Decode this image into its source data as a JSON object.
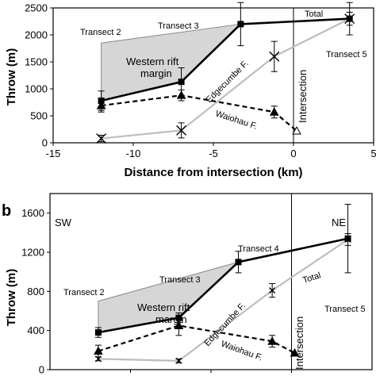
{
  "chart_data": [
    {
      "type": "line",
      "ylabel": "Throw (m)",
      "xlabel": "Distance from intersection (km)",
      "xlim": [
        -15,
        5
      ],
      "ylim": [
        0,
        2500
      ],
      "xticks": [
        -15,
        -10,
        -5,
        0,
        5
      ],
      "yticks": [
        0,
        500,
        1000,
        1500,
        2000,
        2500
      ],
      "series": [
        {
          "name": "Total",
          "style": "solid-black-square",
          "x": [
            -12,
            -7,
            -3.3,
            3.5
          ],
          "y": [
            780,
            1130,
            2200,
            2300
          ],
          "err": [
            180,
            260,
            400,
            120
          ]
        },
        {
          "name": "Waiohau F.",
          "style": "dashed-black-triangle",
          "x": [
            -12,
            -7,
            -1.2,
            0.2
          ],
          "y": [
            690,
            880,
            570,
            220
          ],
          "err": [
            120,
            100,
            110,
            0
          ]
        },
        {
          "name": "Edgecumbe F.",
          "style": "gray-x",
          "x": [
            -12,
            -7,
            -1.2,
            3.5
          ],
          "y": [
            80,
            230,
            1600,
            2300
          ],
          "err": [
            60,
            140,
            280,
            300
          ]
        }
      ],
      "shaded_region": {
        "name": "Western rift margin",
        "x": [
          -12,
          -3.3
        ],
        "y_top": [
          1850,
          2200
        ]
      },
      "vline": {
        "x": 0,
        "label": "Intersection"
      },
      "annotations": [
        "Transect 2",
        "Transect 3",
        "Western rift",
        "margin",
        "Edgecumbe F.",
        "Waiohau F.",
        "Total",
        "Transect 5"
      ]
    },
    {
      "type": "line",
      "panel_label": "b",
      "ylabel": "Throw (m)",
      "ylim": [
        0,
        1800
      ],
      "yticks": [
        0,
        400,
        800,
        1200,
        1600
      ],
      "xlim": [
        -15,
        5
      ],
      "series": [
        {
          "name": "Total",
          "style": "solid-black-square",
          "x": [
            -12,
            -7,
            -3.3,
            3.5
          ],
          "y": [
            380,
            530,
            1100,
            1340
          ],
          "err": [
            50,
            50,
            110,
            350
          ]
        },
        {
          "name": "Waiohau F.",
          "style": "dashed-black-triangle",
          "x": [
            -12,
            -7,
            -1.2,
            0.2
          ],
          "y": [
            190,
            450,
            290,
            170
          ],
          "err": [
            60,
            100,
            60,
            0
          ]
        },
        {
          "name": "Edgecumbe F.",
          "style": "gray-x",
          "x": [
            -12,
            -7,
            -1.2,
            3.5
          ],
          "y": [
            110,
            90,
            810,
            1330
          ],
          "err": [
            20,
            20,
            70,
            60
          ]
        }
      ],
      "shaded_region": {
        "name": "Western rift margin",
        "x": [
          -12,
          -3.3
        ],
        "y_top": [
          700,
          1100
        ]
      },
      "vline": {
        "x": 0,
        "label": "Intersection"
      },
      "annotations": [
        "SW",
        "NE",
        "Transect 2",
        "Transect 3",
        "Transect 4",
        "Transect 5",
        "Western rift",
        "margin",
        "Edgecumbe F.",
        "Waiohau F.",
        "Total"
      ]
    }
  ]
}
